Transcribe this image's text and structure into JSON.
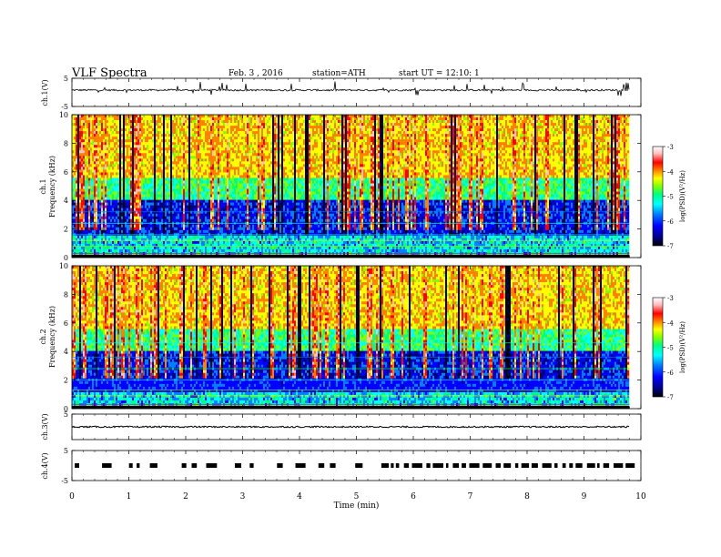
{
  "header": {
    "title": "VLF Spectra",
    "date": "Feb. 3 , 2016",
    "station": "station=ATH",
    "start": "start UT = 12:10: 1"
  },
  "chart_data": {
    "type": "heatmap",
    "xlabel": "Time (min)",
    "xlim": [
      0,
      10
    ],
    "x_ticks": [
      "0",
      "1",
      "2",
      "3",
      "4",
      "5",
      "6",
      "7",
      "8",
      "9",
      "10"
    ],
    "data_end_min": 9.8,
    "panels": [
      {
        "id": "ch1-waveform",
        "type": "line",
        "ylabel": "ch.1(V)",
        "ylim": [
          -5,
          5
        ],
        "y_ticks": [
          "5",
          "-5"
        ],
        "baseline": 0.8,
        "spike_amplitude": 2.5
      },
      {
        "id": "ch1-spectrogram",
        "type": "heatmap",
        "ylabel": "Frequency (kHz)",
        "ylabel_prefix": "ch.1",
        "ylim": [
          0,
          10
        ],
        "y_ticks": [
          "0",
          "2",
          "4",
          "6",
          "8",
          "10"
        ],
        "colorbar": {
          "label": "log(PSD)(V²/Hz)",
          "range": [
            -7,
            -3
          ],
          "ticks": [
            "-3",
            "-4",
            "-5",
            "-6",
            "-7"
          ]
        }
      },
      {
        "id": "ch2-spectrogram",
        "type": "heatmap",
        "ylabel": "Frequency (kHz)",
        "ylabel_prefix": "ch.2",
        "ylim": [
          0,
          10
        ],
        "y_ticks": [
          "0",
          "2",
          "4",
          "6",
          "8",
          "10"
        ],
        "colorbar": {
          "label": "log(PSD)(V²/Hz)",
          "range": [
            -7,
            -3
          ],
          "ticks": [
            "-3",
            "-4",
            "-5",
            "-6",
            "-7"
          ]
        }
      },
      {
        "id": "ch3-waveform",
        "type": "line",
        "ylabel": "ch.3(V)",
        "ylim": [
          -5,
          5
        ],
        "y_ticks": [
          "5"
        ],
        "baseline": 0
      },
      {
        "id": "ch4-waveform",
        "type": "line",
        "ylabel": "ch.4(V)",
        "ylim": [
          -5,
          5
        ],
        "y_ticks": [
          "5",
          "-5"
        ],
        "baseline": 0,
        "style": "pulses"
      }
    ],
    "colormap": [
      "#000000",
      "#00007f",
      "#0000ff",
      "#0080ff",
      "#00ffff",
      "#00ff80",
      "#80ff00",
      "#ffff00",
      "#ff8000",
      "#ff0000",
      "#ffc0c0",
      "#ffffff"
    ]
  }
}
